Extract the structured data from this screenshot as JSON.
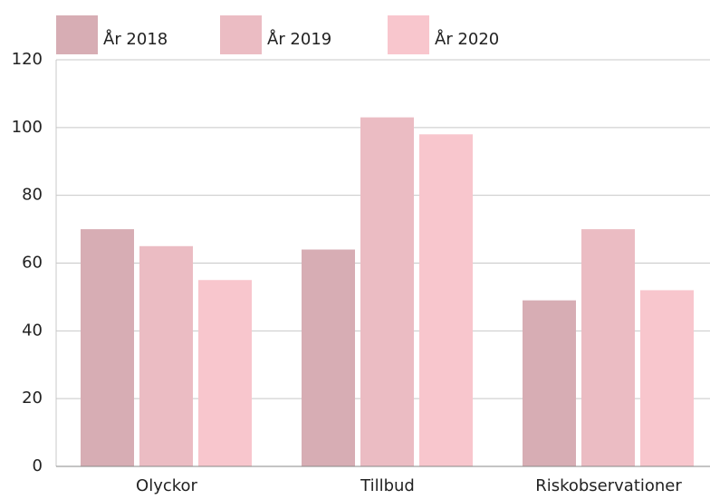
{
  "chart_data": {
    "type": "bar",
    "categories": [
      "Olyckor",
      "Tillbud",
      "Riskobservationer"
    ],
    "series": [
      {
        "name": "År 2018",
        "color": "#d7adb4",
        "values": [
          70,
          64,
          49
        ]
      },
      {
        "name": "År 2019",
        "color": "#ebbcc3",
        "values": [
          65,
          103,
          70
        ]
      },
      {
        "name": "År 2020",
        "color": "#f8c6cd",
        "values": [
          55,
          98,
          52
        ]
      }
    ],
    "ylim": [
      0,
      120
    ],
    "yticks": [
      0,
      20,
      40,
      60,
      80,
      100,
      120
    ],
    "grid": true,
    "legend": "top"
  }
}
